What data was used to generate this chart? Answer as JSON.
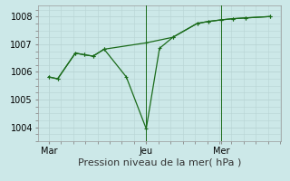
{
  "background_color": "#cce8e8",
  "grid_color": "#b8d4d4",
  "line_color": "#1a6b1a",
  "title": "Pression niveau de la mer( hPa )",
  "xtick_labels": [
    "Mar",
    "Jeu",
    "Mer"
  ],
  "xtick_positions": [
    0.0,
    0.44,
    0.78
  ],
  "ylim": [
    1003.5,
    1008.4
  ],
  "yticks": [
    1004,
    1005,
    1006,
    1007,
    1008
  ],
  "xlim": [
    -0.05,
    1.05
  ],
  "line1_x": [
    0.0,
    0.04,
    0.12,
    0.16,
    0.2,
    0.25,
    0.44,
    0.56,
    0.67,
    0.72,
    0.78,
    0.83,
    0.89,
    1.0
  ],
  "line1_y": [
    1005.82,
    1005.75,
    1006.68,
    1006.62,
    1006.57,
    1006.82,
    1007.05,
    1007.25,
    1007.75,
    1007.82,
    1007.88,
    1007.92,
    1007.95,
    1008.0
  ],
  "line2_x": [
    0.0,
    0.04,
    0.12,
    0.16,
    0.2,
    0.25,
    0.35,
    0.44,
    0.5,
    0.56,
    0.67,
    0.72,
    0.78,
    0.83,
    0.89,
    1.0
  ],
  "line2_y": [
    1005.82,
    1005.75,
    1006.68,
    1006.62,
    1006.57,
    1006.82,
    1005.82,
    1003.95,
    1006.85,
    1007.25,
    1007.75,
    1007.82,
    1007.88,
    1007.92,
    1007.95,
    1008.0
  ],
  "vline_positions": [
    0.44,
    0.78
  ],
  "marker": "+",
  "marker_size": 3,
  "line_width": 0.9,
  "ytick_fontsize": 7,
  "xtick_fontsize": 7,
  "xlabel_fontsize": 8
}
